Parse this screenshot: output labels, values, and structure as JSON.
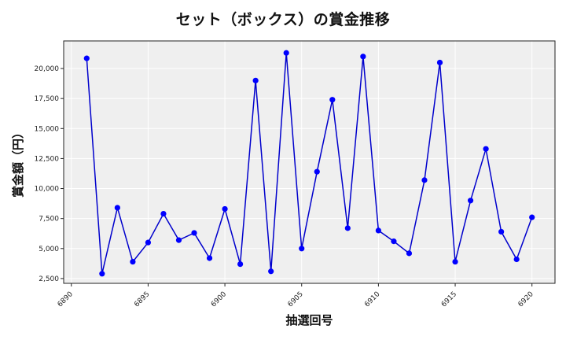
{
  "chart_data": {
    "type": "line",
    "title": "セット（ボックス）の賞金推移",
    "xlabel": "抽選回号",
    "ylabel": "賞金額（円）",
    "x": [
      6891,
      6892,
      6893,
      6894,
      6895,
      6896,
      6897,
      6898,
      6899,
      6900,
      6901,
      6902,
      6903,
      6904,
      6905,
      6906,
      6907,
      6908,
      6909,
      6910,
      6911,
      6912,
      6913,
      6914,
      6915,
      6916,
      6917,
      6918,
      6919,
      6920
    ],
    "series": [
      {
        "name": "賞金額",
        "color": "#0000ff",
        "line_color": "#0000cc",
        "values": [
          20850,
          2900,
          8400,
          3900,
          5500,
          7900,
          5700,
          6300,
          4200,
          8300,
          3700,
          19000,
          3100,
          21300,
          5000,
          11400,
          17400,
          6700,
          21000,
          6500,
          5600,
          4600,
          10700,
          20500,
          3900,
          9000,
          13300,
          6400,
          4100,
          7600
        ]
      }
    ],
    "xticks": [
      6890,
      6895,
      6900,
      6905,
      6910,
      6915,
      6920
    ],
    "xtick_labels": [
      "6890",
      "6895",
      "6900",
      "6905",
      "6910",
      "6915",
      "6920"
    ],
    "yticks": [
      2500,
      5000,
      7500,
      10000,
      12500,
      15000,
      17500,
      20000
    ],
    "ytick_labels": [
      "2,500",
      "5,000",
      "7,500",
      "10,000",
      "12,500",
      "15,000",
      "17,500",
      "20,000"
    ],
    "xlim": [
      6889.5,
      6921.5
    ],
    "ylim": [
      2100,
      22300
    ],
    "grid": true,
    "legend": null,
    "background": "#efefef"
  }
}
